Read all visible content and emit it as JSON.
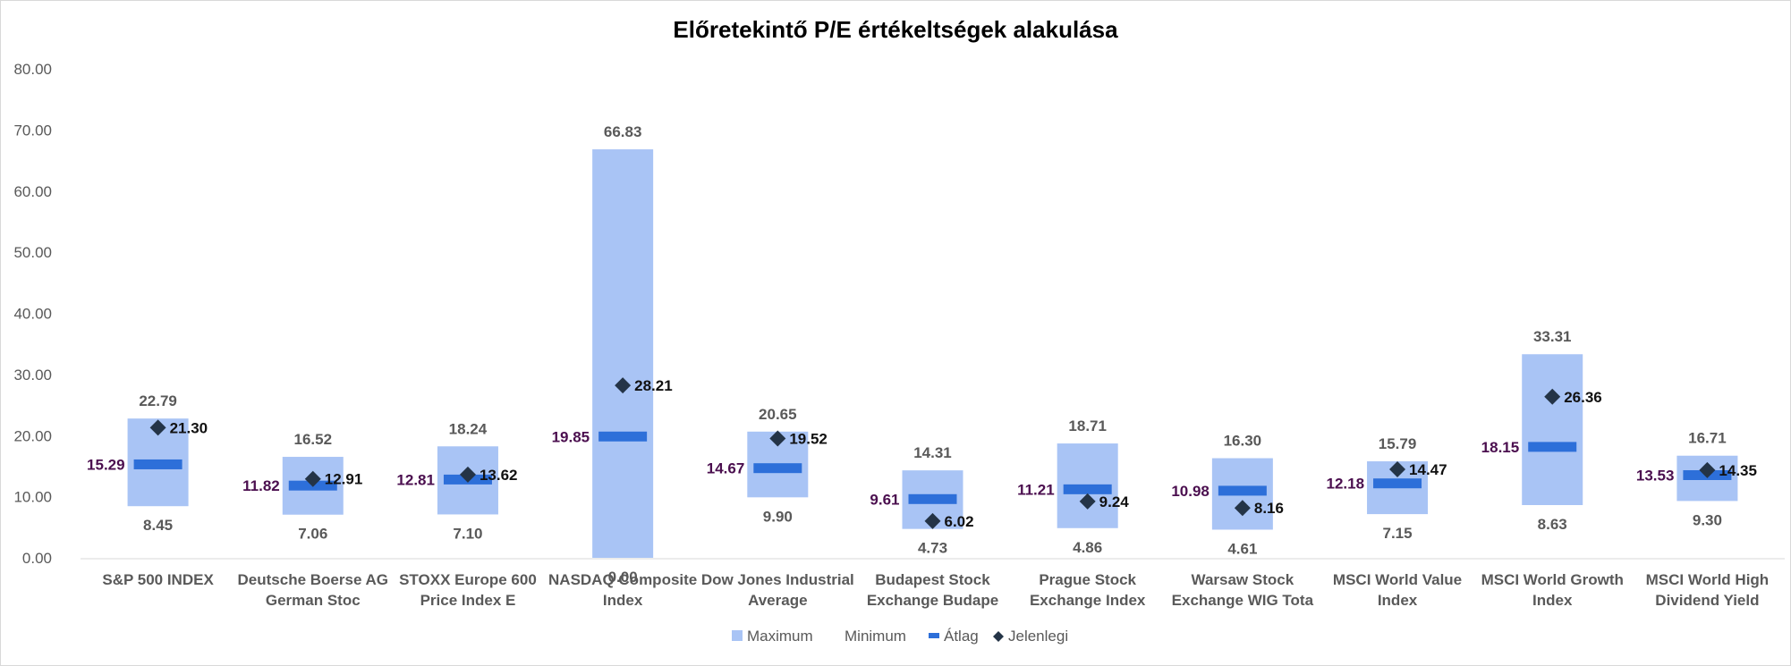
{
  "chart_data": {
    "type": "bar",
    "title": "Előretekintő P/E értékeltségek alakulása",
    "ylim": [
      0,
      80
    ],
    "yticks": [
      "0.00",
      "10.00",
      "20.00",
      "30.00",
      "40.00",
      "50.00",
      "60.00",
      "70.00",
      "80.00"
    ],
    "categories": [
      [
        "S&P 500 INDEX"
      ],
      [
        "Deutsche Boerse AG",
        "German Stoc"
      ],
      [
        "STOXX Europe 600",
        "Price Index E"
      ],
      [
        "NASDAQ Composite",
        "Index"
      ],
      [
        "Dow Jones Industrial",
        "Average"
      ],
      [
        "Budapest Stock",
        "Exchange Budape"
      ],
      [
        "Prague Stock",
        "Exchange Index"
      ],
      [
        "Warsaw Stock",
        "Exchange WIG Tota"
      ],
      [
        "MSCI World Value",
        "Index"
      ],
      [
        "MSCI World Growth",
        "Index"
      ],
      [
        "MSCI World High",
        "Dividend Yield"
      ]
    ],
    "series": [
      {
        "name": "Maximum",
        "values": [
          22.79,
          16.52,
          18.24,
          66.83,
          20.65,
          14.31,
          18.71,
          16.3,
          15.79,
          33.31,
          16.71
        ]
      },
      {
        "name": "Minimum",
        "values": [
          8.45,
          7.06,
          7.1,
          0.0,
          9.9,
          4.73,
          4.86,
          4.61,
          7.15,
          8.63,
          9.3
        ]
      },
      {
        "name": "Átlag",
        "values": [
          15.29,
          11.82,
          12.81,
          19.85,
          14.67,
          9.61,
          11.21,
          10.98,
          12.18,
          18.15,
          13.53
        ]
      },
      {
        "name": "Jelenlegi",
        "values": [
          21.3,
          12.91,
          13.62,
          28.21,
          19.52,
          6.02,
          9.24,
          8.16,
          14.47,
          26.36,
          14.35
        ]
      }
    ],
    "grid": false,
    "legend_position": "bottom",
    "colors": {
      "range": "#a9c4f5",
      "average": "#2d6fd9",
      "current": "#243447",
      "avg_label": "#4b0f4f"
    }
  }
}
